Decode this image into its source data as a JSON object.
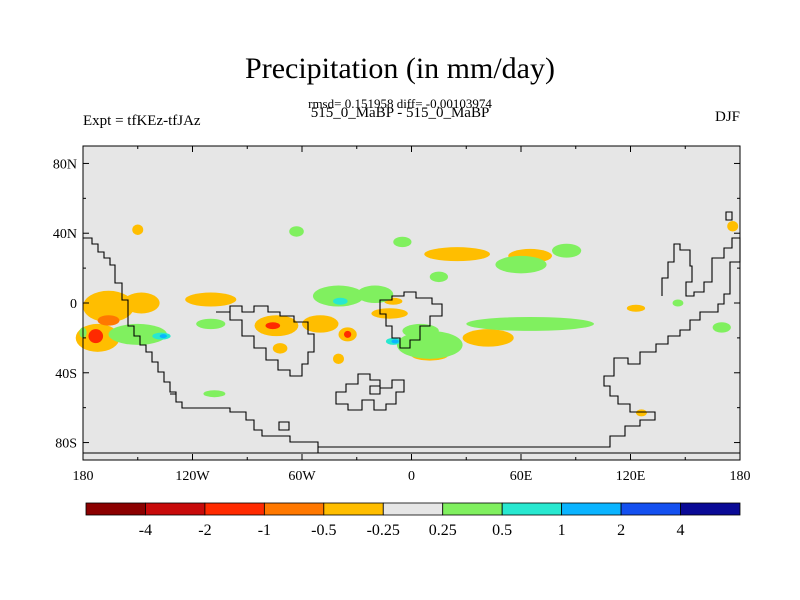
{
  "title": "Precipitation (in mm/day)",
  "stats": "rmsd= 0.151958 diff= -0.00103974",
  "subtitle": "515_0_MaBP - 515_0_MaBP",
  "experiment": "Expt = tfKEz-tfJAz",
  "season": "DJF",
  "chart_data": {
    "type": "heatmap",
    "map": "global lat-lon difference map with coastlines",
    "xlim": [
      -180,
      180
    ],
    "ylim": [
      -90,
      90
    ],
    "x_ticks": [
      {
        "value": -180,
        "label": "180"
      },
      {
        "value": -120,
        "label": "120W"
      },
      {
        "value": -60,
        "label": "60W"
      },
      {
        "value": 0,
        "label": "0"
      },
      {
        "value": 60,
        "label": "60E"
      },
      {
        "value": 120,
        "label": "120E"
      },
      {
        "value": 180,
        "label": "180"
      }
    ],
    "y_ticks": [
      {
        "value": 80,
        "label": "80N"
      },
      {
        "value": 40,
        "label": "40N"
      },
      {
        "value": 0,
        "label": "0"
      },
      {
        "value": -40,
        "label": "40S"
      },
      {
        "value": -80,
        "label": "80S"
      }
    ],
    "background_color": "#e6e6e6",
    "colorbar": {
      "bins": [
        {
          "color": "#8b0000"
        },
        {
          "color": "#c80a0a"
        },
        {
          "color": "#ff2a00"
        },
        {
          "color": "#ff7800"
        },
        {
          "color": "#ffbe00"
        },
        {
          "color": "#e6e6e6"
        },
        {
          "color": "#80f05f"
        },
        {
          "color": "#28e8d0"
        },
        {
          "color": "#0ab4ff"
        },
        {
          "color": "#1450f0"
        },
        {
          "color": "#0a0a96"
        }
      ],
      "labels": [
        "-4",
        "-2",
        "-1",
        "-0.5",
        "-0.25",
        "0.25",
        "0.5",
        "1",
        "2",
        "4"
      ]
    },
    "anomaly_patches": [
      {
        "category": "-0.25 to -0.5",
        "lon": -166,
        "lat": -2,
        "dlon": 14,
        "dlat": 9
      },
      {
        "category": "-0.25 to -0.5",
        "lon": -148,
        "lat": 0,
        "dlon": 10,
        "dlat": 6
      },
      {
        "category": "-0.25 to -0.5",
        "lon": -110,
        "lat": 2,
        "dlon": 14,
        "dlat": 4
      },
      {
        "category": "-0.25 to -0.5",
        "lon": -172,
        "lat": -20,
        "dlon": 12,
        "dlat": 8
      },
      {
        "category": "-1 to -2",
        "lon": -173,
        "lat": -19,
        "dlon": 4,
        "dlat": 4
      },
      {
        "category": "-0.5 to -1",
        "lon": -166,
        "lat": -10,
        "dlon": 6,
        "dlat": 3
      },
      {
        "category": "-0.25 to -0.5",
        "lon": -74,
        "lat": -13,
        "dlon": 12,
        "dlat": 6
      },
      {
        "category": "-1 to -2",
        "lon": -76,
        "lat": -13,
        "dlon": 4,
        "dlat": 2
      },
      {
        "category": "-0.25 to -0.5",
        "lon": -50,
        "lat": -12,
        "dlon": 10,
        "dlat": 5
      },
      {
        "category": "-0.25 to -0.5",
        "lon": -35,
        "lat": -18,
        "dlon": 5,
        "dlat": 4
      },
      {
        "category": "-1 to -2",
        "lon": -35,
        "lat": -18,
        "dlon": 2,
        "dlat": 2
      },
      {
        "category": "-0.25 to -0.5",
        "lon": -12,
        "lat": -6,
        "dlon": 10,
        "dlat": 3
      },
      {
        "category": "-0.25 to -0.5",
        "lon": 25,
        "lat": 28,
        "dlon": 18,
        "dlat": 4
      },
      {
        "category": "-0.25 to -0.5",
        "lon": 65,
        "lat": 27,
        "dlon": 12,
        "dlat": 4
      },
      {
        "category": "-0.25 to -0.5",
        "lon": 42,
        "lat": -20,
        "dlon": 14,
        "dlat": 5
      },
      {
        "category": "-0.25 to -0.5",
        "lon": 10,
        "lat": -30,
        "dlon": 10,
        "dlat": 3
      },
      {
        "category": "-0.25 to -0.5",
        "lon": -40,
        "lat": -32,
        "dlon": 3,
        "dlat": 3
      },
      {
        "category": "-0.25 to -0.5",
        "lon": -72,
        "lat": -26,
        "dlon": 4,
        "dlat": 3
      },
      {
        "category": "-0.25 to -0.5",
        "lon": -150,
        "lat": 42,
        "dlon": 3,
        "dlat": 3
      },
      {
        "category": "-0.25 to -0.5",
        "lon": 176,
        "lat": 44,
        "dlon": 3,
        "dlat": 3
      },
      {
        "category": "-0.25 to -0.5",
        "lon": 123,
        "lat": -3,
        "dlon": 5,
        "dlat": 2
      },
      {
        "category": "-0.25 to -0.5",
        "lon": 126,
        "lat": -63,
        "dlon": 3,
        "dlat": 2
      },
      {
        "category": "-0.25 to -0.5",
        "lon": -10,
        "lat": 1,
        "dlon": 5,
        "dlat": 2
      },
      {
        "category": "0.25 to 0.5",
        "lon": -40,
        "lat": 4,
        "dlon": 14,
        "dlat": 6
      },
      {
        "category": "0.25 to 0.5",
        "lon": -20,
        "lat": 5,
        "dlon": 10,
        "dlat": 5
      },
      {
        "category": "0.25 to 0.5",
        "lon": 10,
        "lat": -24,
        "dlon": 18,
        "dlat": 8
      },
      {
        "category": "0.25 to 0.5",
        "lon": 5,
        "lat": -16,
        "dlon": 10,
        "dlat": 4
      },
      {
        "category": "0.25 to 0.5",
        "lon": 65,
        "lat": -12,
        "dlon": 35,
        "dlat": 4
      },
      {
        "category": "0.25 to 0.5",
        "lon": 60,
        "lat": 22,
        "dlon": 14,
        "dlat": 5
      },
      {
        "category": "0.25 to 0.5",
        "lon": 85,
        "lat": 30,
        "dlon": 8,
        "dlat": 4
      },
      {
        "category": "0.25 to 0.5",
        "lon": -150,
        "lat": -18,
        "dlon": 16,
        "dlat": 6
      },
      {
        "category": "0.25 to 0.5",
        "lon": -110,
        "lat": -12,
        "dlon": 8,
        "dlat": 3
      },
      {
        "category": "0.25 to 0.5",
        "lon": -5,
        "lat": 35,
        "dlon": 5,
        "dlat": 3
      },
      {
        "category": "0.25 to 0.5",
        "lon": 15,
        "lat": 15,
        "dlon": 5,
        "dlat": 3
      },
      {
        "category": "0.25 to 0.5",
        "lon": -63,
        "lat": 41,
        "dlon": 4,
        "dlat": 3
      },
      {
        "category": "0.25 to 0.5",
        "lon": -108,
        "lat": -52,
        "dlon": 6,
        "dlat": 2
      },
      {
        "category": "0.25 to 0.5",
        "lon": -180,
        "lat": -17,
        "dlon": 2,
        "dlat": 3
      },
      {
        "category": "0.25 to 0.5",
        "lon": 170,
        "lat": -14,
        "dlon": 5,
        "dlat": 3
      },
      {
        "category": "0.25 to 0.5",
        "lon": 146,
        "lat": 0,
        "dlon": 3,
        "dlat": 2
      },
      {
        "category": "0.5 to 1",
        "lon": -39,
        "lat": 1,
        "dlon": 4,
        "dlat": 2
      },
      {
        "category": "0.5 to 1",
        "lon": -137,
        "lat": -19,
        "dlon": 5,
        "dlat": 2
      },
      {
        "category": "0.5 to 1",
        "lon": -10,
        "lat": -22,
        "dlon": 4,
        "dlat": 2
      },
      {
        "category": "1 to 2",
        "lon": -136,
        "lat": -19,
        "dlon": 2,
        "dlat": 1
      },
      {
        "category": "1 to 2",
        "lon": -9,
        "lat": -22,
        "dlon": 2,
        "dlat": 1
      }
    ]
  }
}
